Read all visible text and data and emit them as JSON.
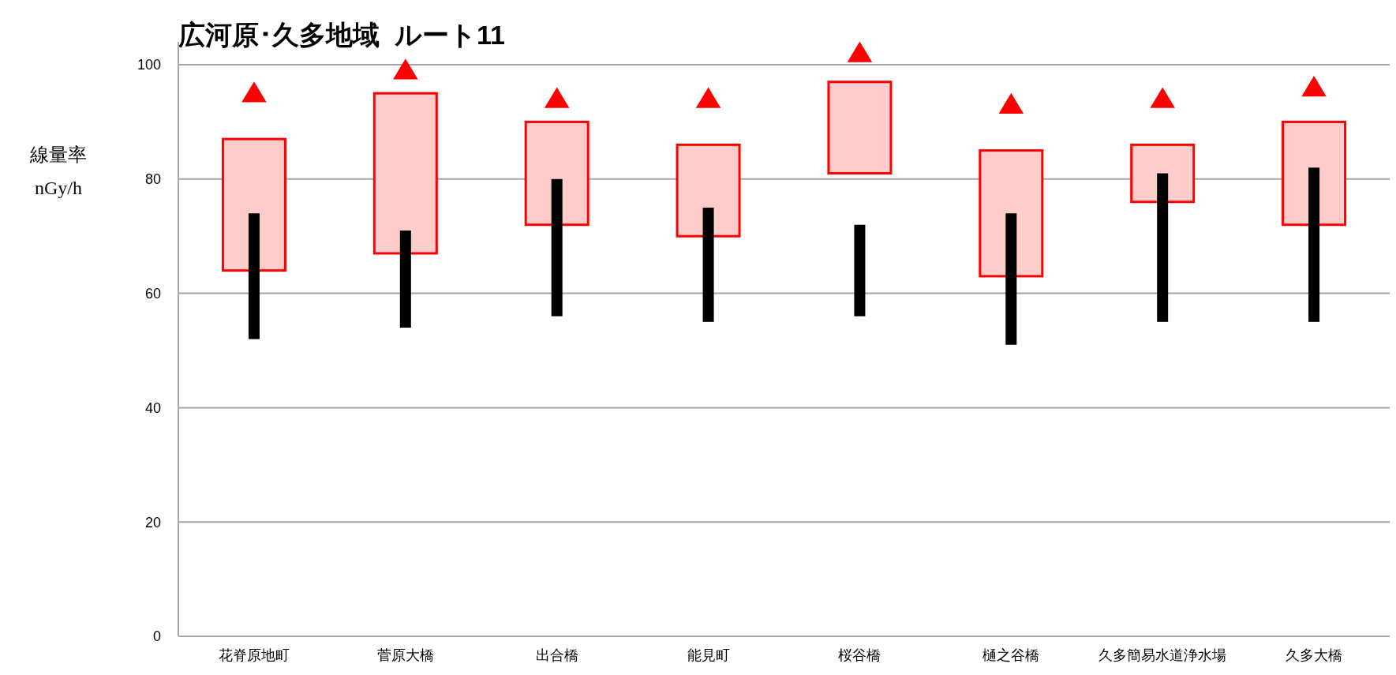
{
  "chart_data": {
    "type": "bar",
    "title": "広河原･久多地域  ルート11",
    "ylabel": "線量率\nnGy/h",
    "categories": [
      "花脊原地町",
      "菅原大橋",
      "出合橋",
      "能見町",
      "桜谷橋",
      "樋之谷橋",
      "久多簡易水道浄水場",
      "久多大橋"
    ],
    "series": [
      {
        "color": "#ffcccc",
        "base": [
          64,
          67,
          72,
          70,
          81,
          63,
          76,
          72
        ],
        "values": [
          23,
          28,
          18,
          16,
          16,
          22,
          10,
          18
        ]
      },
      {
        "color": "#000000",
        "base": [
          52,
          54,
          56,
          55,
          56,
          51,
          55,
          55
        ],
        "values": [
          22,
          17,
          24,
          20,
          16,
          23,
          26,
          27
        ]
      },
      {
        "type": "scatter",
        "color": "#ff0000",
        "marker": "triangle",
        "values": [
          95,
          99,
          94,
          94,
          102,
          93,
          94,
          96
        ]
      }
    ],
    "ylim": [
      0,
      104
    ],
    "yticks": [
      0,
      20,
      40,
      60,
      80,
      100
    ],
    "grid": "y"
  }
}
